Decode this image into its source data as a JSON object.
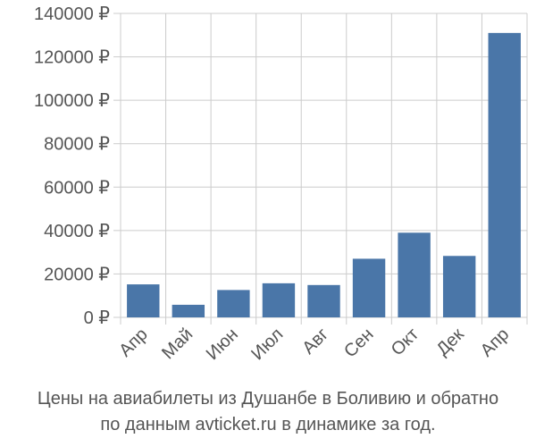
{
  "chart_data": {
    "type": "bar",
    "categories": [
      "Апр",
      "Май",
      "Июн",
      "Июл",
      "Авг",
      "Сен",
      "Окт",
      "Дек",
      "Апр"
    ],
    "values": [
      15200,
      5800,
      12600,
      15700,
      14900,
      27000,
      39000,
      28300,
      131000
    ],
    "ylim": [
      0,
      140000
    ],
    "yticks": [
      0,
      20000,
      40000,
      60000,
      80000,
      100000,
      120000,
      140000
    ],
    "ytick_labels": [
      "0 ₽",
      "20000 ₽",
      "40000 ₽",
      "60000 ₽",
      "80000 ₽",
      "100000 ₽",
      "120000 ₽",
      "140000 ₽"
    ],
    "grid": true,
    "bar_color": "#4a76a8",
    "grid_color": "#cccccc"
  },
  "caption": {
    "line1": "Цены на авиабилеты из Душанбе в Боливию и обратно",
    "line2": "по данным avticket.ru в динамике за год."
  }
}
